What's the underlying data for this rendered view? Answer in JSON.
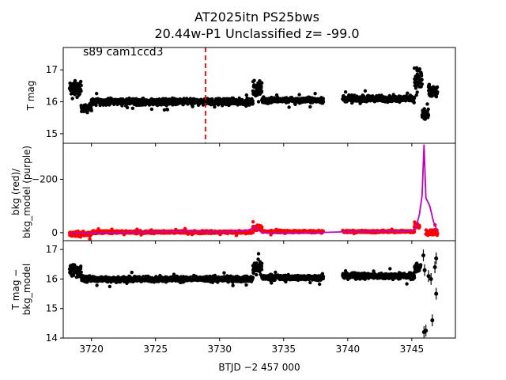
{
  "chart_data": {
    "type": "scatter",
    "title_line1": "AT2025itn  PS25bws",
    "title_line2": "20.44w-P1 Unclassified z= -99.0",
    "xlabel": "BTJD −2 457 000",
    "xlim": [
      3717.8,
      3748.4
    ],
    "xticks": [
      3720,
      3725,
      3730,
      3735,
      3740,
      3745
    ],
    "marker_line_x": 3728.9,
    "colors": {
      "points": "#000000",
      "bkg": "#ff0000",
      "bkg_model": "#bf00bf",
      "marker_line": "#ff0000"
    },
    "panels": [
      {
        "id": "top",
        "ylabel_lines": [
          "T mag"
        ],
        "ylim": [
          17.7,
          14.7
        ],
        "yticks": [
          15,
          16,
          17
        ],
        "annotation": "s89 cam1ccd3",
        "segments": [
          {
            "t0": 3718.3,
            "t1": 3719.2,
            "y": 16.4,
            "spread": 0.35
          },
          {
            "t0": 3719.2,
            "t1": 3720.0,
            "y": 15.8,
            "spread": 0.15
          },
          {
            "t0": 3720.0,
            "t1": 3732.6,
            "y": 16.0,
            "spread": 0.14
          },
          {
            "t0": 3732.6,
            "t1": 3733.3,
            "y": 16.4,
            "spread": 0.35
          },
          {
            "t0": 3733.3,
            "t1": 3738.1,
            "y": 16.05,
            "spread": 0.12
          },
          {
            "t0": 3739.6,
            "t1": 3745.2,
            "y": 16.1,
            "spread": 0.14
          },
          {
            "t0": 3745.2,
            "t1": 3745.8,
            "y": 16.7,
            "spread": 0.6
          },
          {
            "t0": 3745.8,
            "t1": 3746.3,
            "y": 15.6,
            "spread": 0.35
          },
          {
            "t0": 3746.3,
            "t1": 3747.0,
            "y": 16.3,
            "spread": 0.35
          }
        ]
      },
      {
        "id": "middle",
        "ylabel_lines": [
          "bkg (red)/",
          "bkg_model (purple)"
        ],
        "ylim": [
          -335,
          30
        ],
        "yticks": [
          0,
          -200
        ],
        "model": [
          [
            3718.4,
            0
          ],
          [
            3719.5,
            2
          ],
          [
            3721,
            0
          ],
          [
            3724,
            -2
          ],
          [
            3727,
            -4
          ],
          [
            3730,
            -2
          ],
          [
            3732,
            -6
          ],
          [
            3732.8,
            -20
          ],
          [
            3733.3,
            0
          ],
          [
            3734,
            2
          ],
          [
            3738.1,
            -1
          ],
          [
            3739.6,
            -3
          ],
          [
            3743,
            -4
          ],
          [
            3744.8,
            -5
          ],
          [
            3745.3,
            -15
          ],
          [
            3745.6,
            -70
          ],
          [
            3745.8,
            -140
          ],
          [
            3745.95,
            -330
          ],
          [
            3746.1,
            -130
          ],
          [
            3746.4,
            -100
          ],
          [
            3746.7,
            -40
          ],
          [
            3747.0,
            -5
          ]
        ],
        "segments": [
          {
            "t0": 3718.3,
            "t1": 3720.0,
            "y": 5,
            "spread": 12
          },
          {
            "t0": 3720.0,
            "t1": 3732.6,
            "y": -2,
            "spread": 7
          },
          {
            "t0": 3732.6,
            "t1": 3733.3,
            "y": -18,
            "spread": 12
          },
          {
            "t0": 3733.3,
            "t1": 3738.1,
            "y": -4,
            "spread": 6
          },
          {
            "t0": 3739.6,
            "t1": 3745.2,
            "y": -4,
            "spread": 6
          },
          {
            "t0": 3745.2,
            "t1": 3745.6,
            "y": -25,
            "spread": 15
          },
          {
            "t0": 3746.1,
            "t1": 3747.0,
            "y": 0,
            "spread": 15
          }
        ]
      },
      {
        "id": "bottom",
        "ylabel_lines": [
          "T mag −",
          "bkg_model"
        ],
        "ylim": [
          17.3,
          14.0
        ],
        "yticks": [
          14,
          15,
          16,
          17
        ],
        "segments": [
          {
            "t0": 3718.3,
            "t1": 3719.2,
            "y": 16.3,
            "spread": 0.35
          },
          {
            "t0": 3719.2,
            "t1": 3720.0,
            "y": 16.0,
            "spread": 0.15
          },
          {
            "t0": 3720.0,
            "t1": 3732.6,
            "y": 16.0,
            "spread": 0.13
          },
          {
            "t0": 3732.6,
            "t1": 3733.3,
            "y": 16.4,
            "spread": 0.35
          },
          {
            "t0": 3733.3,
            "t1": 3738.1,
            "y": 16.05,
            "spread": 0.12
          },
          {
            "t0": 3739.6,
            "t1": 3745.2,
            "y": 16.1,
            "spread": 0.14
          },
          {
            "t0": 3745.2,
            "t1": 3745.7,
            "y": 16.4,
            "spread": 0.3
          }
        ],
        "sparse_points": [
          [
            3745.95,
            14.2
          ],
          [
            3746.1,
            14.25
          ],
          [
            3746.6,
            14.6
          ],
          [
            3746.9,
            15.5
          ],
          [
            3746.5,
            16.0
          ],
          [
            3746.8,
            16.4
          ],
          [
            3746.3,
            16.1
          ],
          [
            3746.0,
            16.3
          ],
          [
            3746.9,
            16.7
          ],
          [
            3745.9,
            16.8
          ]
        ]
      }
    ]
  }
}
